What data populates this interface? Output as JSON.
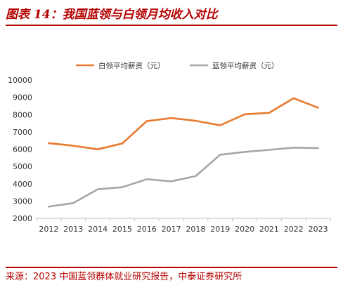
{
  "figure": {
    "title": "图表 14：我国蓝领与白领月均收入对比",
    "source": "来源：2023 中国蓝领群体就业研究报告，中泰证券研究所"
  },
  "colors": {
    "accent": "#b40000",
    "white_collar": "#e8792e",
    "blue_collar": "#a6a6a6"
  },
  "chart_data": {
    "type": "line",
    "title": "",
    "xlabel": "",
    "ylabel": "",
    "x": [
      "2012",
      "2013",
      "2014",
      "2015",
      "2016",
      "2017",
      "2018",
      "2019",
      "2020",
      "2021",
      "2022",
      "2023"
    ],
    "ylim": [
      2000,
      10000
    ],
    "yticks": [
      2000,
      3000,
      4000,
      5000,
      6000,
      7000,
      8000,
      9000,
      10000
    ],
    "grid": false,
    "legend": "top",
    "series": [
      {
        "name": "白领平均薪资（元）",
        "color": "#e8792e",
        "values": [
          6350,
          6200,
          5990,
          6330,
          7620,
          7800,
          7640,
          7380,
          8020,
          8100,
          8950,
          8400
        ]
      },
      {
        "name": "蓝领平均薪资（元）",
        "color": "#a6a6a6",
        "values": [
          2680,
          2880,
          3680,
          3800,
          4260,
          4140,
          4440,
          5680,
          5840,
          5960,
          6090,
          6060
        ]
      }
    ]
  }
}
